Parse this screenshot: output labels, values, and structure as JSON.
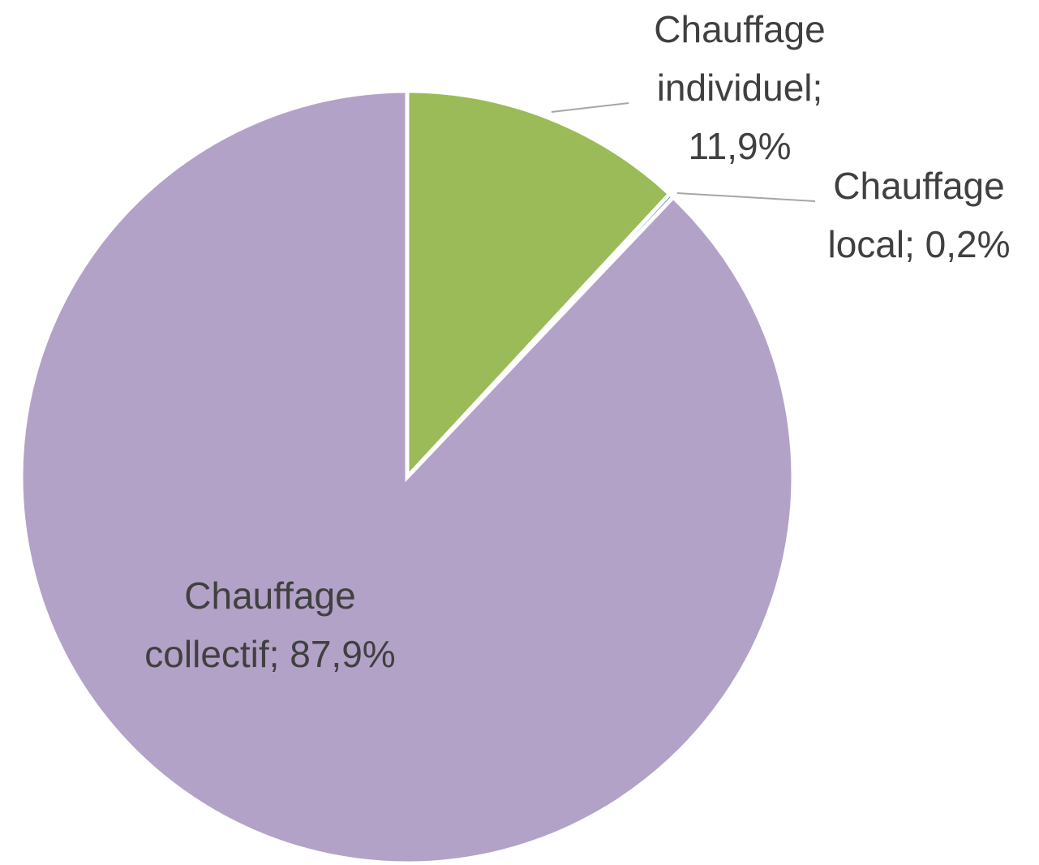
{
  "chart_data": {
    "type": "pie",
    "values": [
      11.9,
      0.2,
      87.9
    ],
    "value_labels": [
      "Chauffage individuel; 11,9%",
      "Chauffage local; 0,2%",
      "Chauffage collectif; 87,9%"
    ],
    "colors": [
      "#9bbb59",
      "#4f81bd",
      "#b3a2c7"
    ]
  }
}
